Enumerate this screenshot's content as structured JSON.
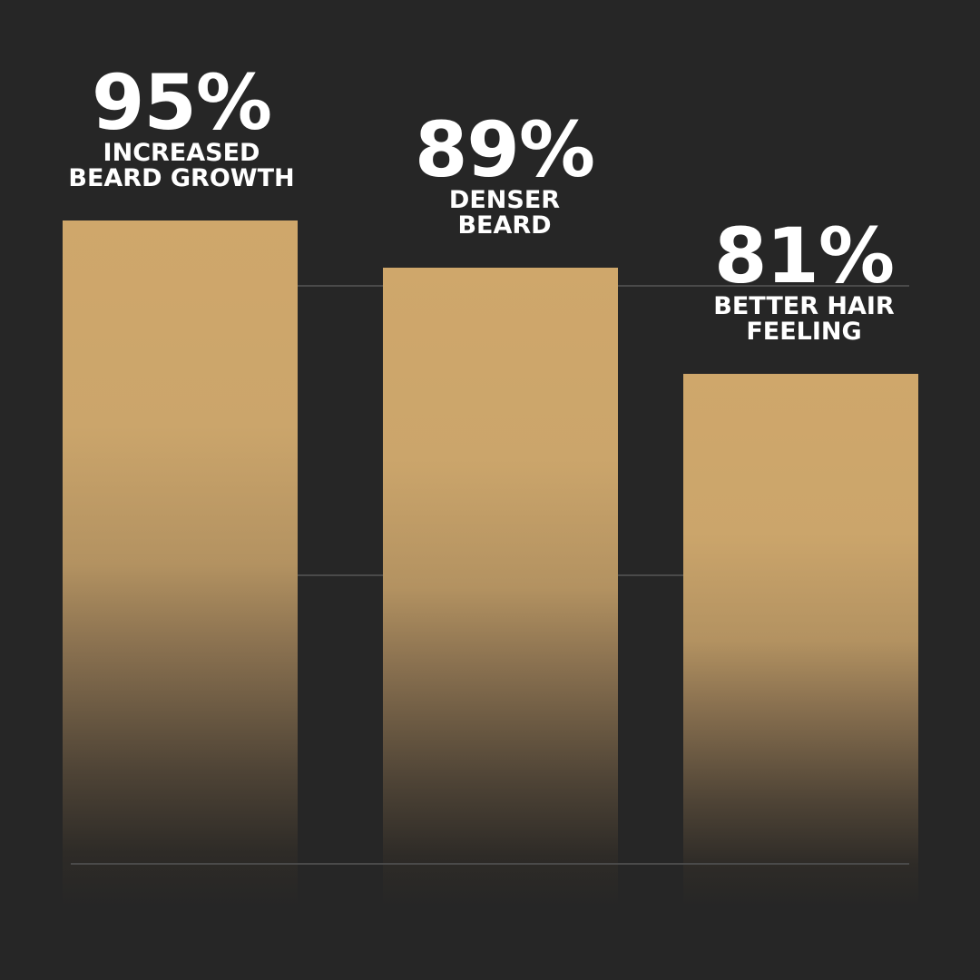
{
  "chart_data": {
    "type": "bar",
    "categories": [
      "INCREASED BEARD GROWTH",
      "DENSER BEARD",
      "BETTER HAIR FEELING"
    ],
    "values": [
      95,
      89,
      81
    ],
    "value_labels": [
      "95%",
      "89%",
      "81%"
    ],
    "label_lines": [
      [
        "INCREASED",
        "BEARD GROWTH"
      ],
      [
        "DENSER",
        "BEARD"
      ],
      [
        "BETTER HAIR",
        "FEELING"
      ]
    ],
    "title": "",
    "xlabel": "",
    "ylabel": "",
    "grid": true,
    "colors": {
      "background": "#262626",
      "bar": "#cfa76b",
      "text": "#ffffff",
      "grid": "#4a4a4a"
    }
  }
}
